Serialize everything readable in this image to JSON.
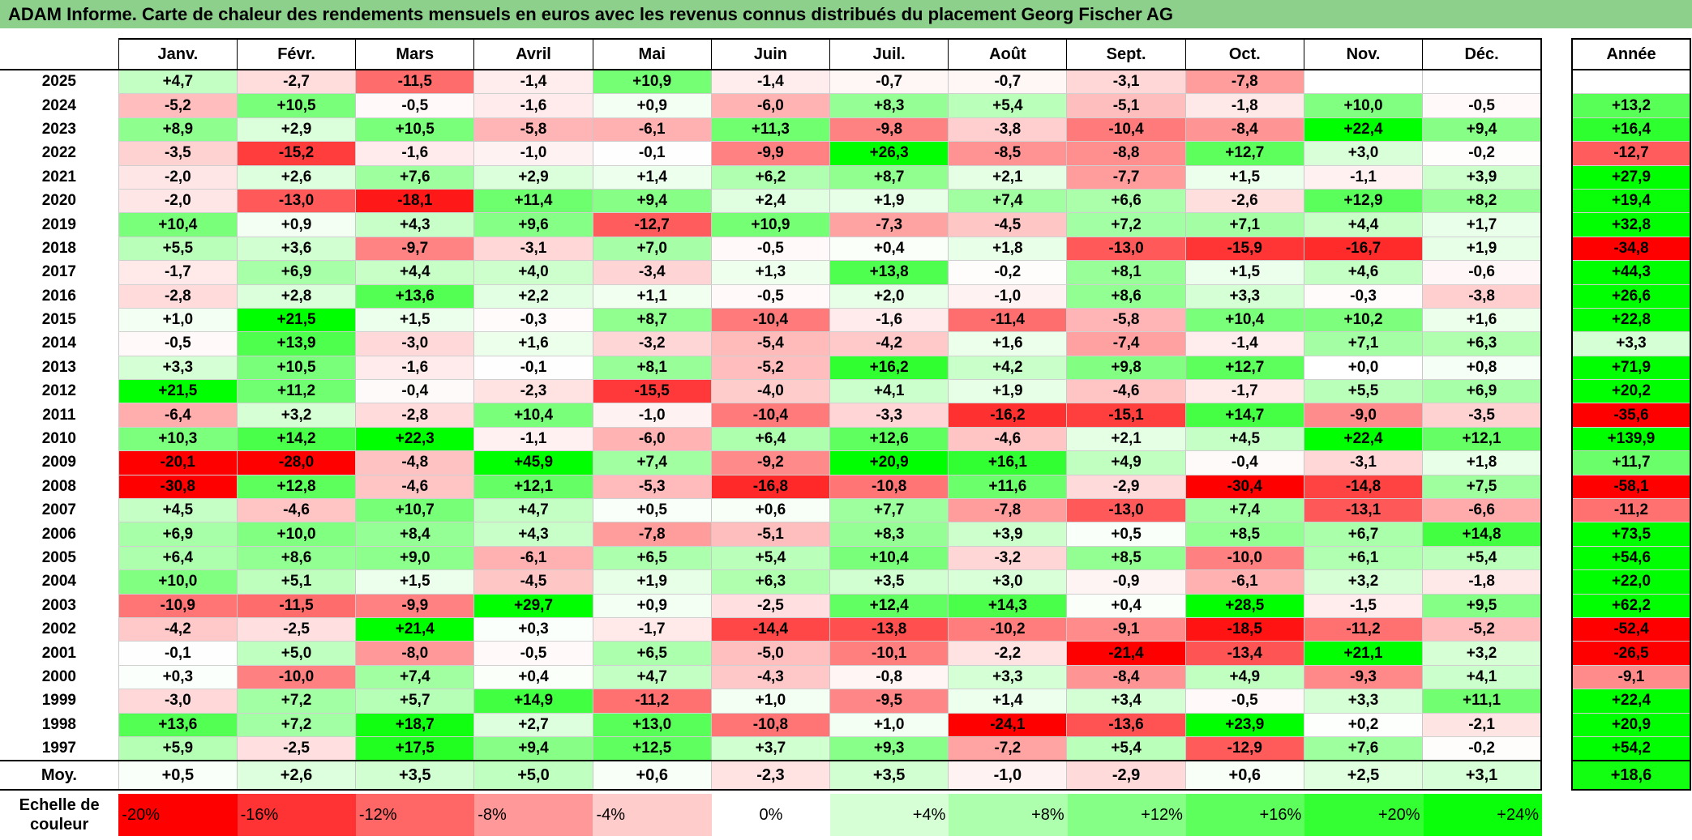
{
  "title": "ADAM Informe. Carte de chaleur des rendements mensuels en euros avec les revenus connus distribués du placement Georg Fischer AG",
  "chart_data": {
    "type": "heatmap",
    "title": "ADAM Informe. Carte de chaleur des rendements mensuels en euros avec les revenus connus distribués du placement Georg Fischer AG",
    "months": [
      "Janv.",
      "Févr.",
      "Mars",
      "Avril",
      "Mai",
      "Juin",
      "Juil.",
      "Août",
      "Sept.",
      "Oct.",
      "Nov.",
      "Déc."
    ],
    "year_header": "Année",
    "rows": [
      {
        "year": "2025",
        "values": [
          "+4,7",
          "-2,7",
          "-11,5",
          "-1,4",
          "+10,9",
          "-1,4",
          "-0,7",
          "-0,7",
          "-3,1",
          "-7,8",
          "",
          ""
        ],
        "total": ""
      },
      {
        "year": "2024",
        "values": [
          "-5,2",
          "+10,5",
          "-0,5",
          "-1,6",
          "+0,9",
          "-6,0",
          "+8,3",
          "+5,4",
          "-5,1",
          "-1,8",
          "+10,0",
          "-0,5"
        ],
        "total": "+13,2"
      },
      {
        "year": "2023",
        "values": [
          "+8,9",
          "+2,9",
          "+10,5",
          "-5,8",
          "-6,1",
          "+11,3",
          "-9,8",
          "-3,8",
          "-10,4",
          "-8,4",
          "+22,4",
          "+9,4"
        ],
        "total": "+16,4"
      },
      {
        "year": "2022",
        "values": [
          "-3,5",
          "-15,2",
          "-1,6",
          "-1,0",
          "-0,1",
          "-9,9",
          "+26,3",
          "-8,5",
          "-8,8",
          "+12,7",
          "+3,0",
          "-0,2"
        ],
        "total": "-12,7"
      },
      {
        "year": "2021",
        "values": [
          "-2,0",
          "+2,6",
          "+7,6",
          "+2,9",
          "+1,4",
          "+6,2",
          "+8,7",
          "+2,1",
          "-7,7",
          "+1,5",
          "-1,1",
          "+3,9"
        ],
        "total": "+27,9"
      },
      {
        "year": "2020",
        "values": [
          "-2,0",
          "-13,0",
          "-18,1",
          "+11,4",
          "+9,4",
          "+2,4",
          "+1,9",
          "+7,4",
          "+6,6",
          "-2,6",
          "+12,9",
          "+8,2"
        ],
        "total": "+19,4"
      },
      {
        "year": "2019",
        "values": [
          "+10,4",
          "+0,9",
          "+4,3",
          "+9,6",
          "-12,7",
          "+10,9",
          "-7,3",
          "-4,5",
          "+7,2",
          "+7,1",
          "+4,4",
          "+1,7"
        ],
        "total": "+32,8"
      },
      {
        "year": "2018",
        "values": [
          "+5,5",
          "+3,6",
          "-9,7",
          "-3,1",
          "+7,0",
          "-0,5",
          "+0,4",
          "+1,8",
          "-13,0",
          "-15,9",
          "-16,7",
          "+1,9"
        ],
        "total": "-34,8"
      },
      {
        "year": "2017",
        "values": [
          "-1,7",
          "+6,9",
          "+4,4",
          "+4,0",
          "-3,4",
          "+1,3",
          "+13,8",
          "-0,2",
          "+8,1",
          "+1,5",
          "+4,6",
          "-0,6"
        ],
        "total": "+44,3"
      },
      {
        "year": "2016",
        "values": [
          "-2,8",
          "+2,8",
          "+13,6",
          "+2,2",
          "+1,1",
          "-0,5",
          "+2,0",
          "-1,0",
          "+8,6",
          "+3,3",
          "-0,3",
          "-3,8"
        ],
        "total": "+26,6"
      },
      {
        "year": "2015",
        "values": [
          "+1,0",
          "+21,5",
          "+1,5",
          "-0,3",
          "+8,7",
          "-10,4",
          "-1,6",
          "-11,4",
          "-5,8",
          "+10,4",
          "+10,2",
          "+1,6"
        ],
        "total": "+22,8"
      },
      {
        "year": "2014",
        "values": [
          "-0,5",
          "+13,9",
          "-3,0",
          "+1,6",
          "-3,2",
          "-5,4",
          "-4,2",
          "+1,6",
          "-7,4",
          "-1,4",
          "+7,1",
          "+6,3"
        ],
        "total": "+3,3"
      },
      {
        "year": "2013",
        "values": [
          "+3,3",
          "+10,5",
          "-1,6",
          "-0,1",
          "+8,1",
          "-5,2",
          "+16,2",
          "+4,2",
          "+9,8",
          "+12,7",
          "+0,0",
          "+0,8"
        ],
        "total": "+71,9"
      },
      {
        "year": "2012",
        "values": [
          "+21,5",
          "+11,2",
          "-0,4",
          "-2,3",
          "-15,5",
          "-4,0",
          "+4,1",
          "+1,9",
          "-4,6",
          "-1,7",
          "+5,5",
          "+6,9"
        ],
        "total": "+20,2"
      },
      {
        "year": "2011",
        "values": [
          "-6,4",
          "+3,2",
          "-2,8",
          "+10,4",
          "-1,0",
          "-10,4",
          "-3,3",
          "-16,2",
          "-15,1",
          "+14,7",
          "-9,0",
          "-3,5"
        ],
        "total": "-35,6"
      },
      {
        "year": "2010",
        "values": [
          "+10,3",
          "+14,2",
          "+22,3",
          "-1,1",
          "-6,0",
          "+6,4",
          "+12,6",
          "-4,6",
          "+2,1",
          "+4,5",
          "+22,4",
          "+12,1"
        ],
        "total": "+139,9"
      },
      {
        "year": "2009",
        "values": [
          "-20,1",
          "-28,0",
          "-4,8",
          "+45,9",
          "+7,4",
          "-9,2",
          "+20,9",
          "+16,1",
          "+4,9",
          "-0,4",
          "-3,1",
          "+1,8"
        ],
        "total": "+11,7"
      },
      {
        "year": "2008",
        "values": [
          "-30,8",
          "+12,8",
          "-4,6",
          "+12,1",
          "-5,3",
          "-16,8",
          "-10,8",
          "+11,6",
          "-2,9",
          "-30,4",
          "-14,8",
          "+7,5"
        ],
        "total": "-58,1"
      },
      {
        "year": "2007",
        "values": [
          "+4,5",
          "-4,6",
          "+10,7",
          "+4,7",
          "+0,5",
          "+0,6",
          "+7,7",
          "-7,8",
          "-13,0",
          "+7,4",
          "-13,1",
          "-6,6"
        ],
        "total": "-11,2"
      },
      {
        "year": "2006",
        "values": [
          "+6,9",
          "+10,0",
          "+8,4",
          "+4,3",
          "-7,8",
          "-5,1",
          "+8,3",
          "+3,9",
          "+0,5",
          "+8,5",
          "+6,7",
          "+14,8"
        ],
        "total": "+73,5"
      },
      {
        "year": "2005",
        "values": [
          "+6,4",
          "+8,6",
          "+9,0",
          "-6,1",
          "+6,5",
          "+5,4",
          "+10,4",
          "-3,2",
          "+8,5",
          "-10,0",
          "+6,1",
          "+5,4"
        ],
        "total": "+54,6"
      },
      {
        "year": "2004",
        "values": [
          "+10,0",
          "+5,1",
          "+1,5",
          "-4,5",
          "+1,9",
          "+6,3",
          "+3,5",
          "+3,0",
          "-0,9",
          "-6,1",
          "+3,2",
          "-1,8"
        ],
        "total": "+22,0"
      },
      {
        "year": "2003",
        "values": [
          "-10,9",
          "-11,5",
          "-9,9",
          "+29,7",
          "+0,9",
          "-2,5",
          "+12,4",
          "+14,3",
          "+0,4",
          "+28,5",
          "-1,5",
          "+9,5"
        ],
        "total": "+62,2"
      },
      {
        "year": "2002",
        "values": [
          "-4,2",
          "-2,5",
          "+21,4",
          "+0,3",
          "-1,7",
          "-14,4",
          "-13,8",
          "-10,2",
          "-9,1",
          "-18,5",
          "-11,2",
          "-5,2"
        ],
        "total": "-52,4"
      },
      {
        "year": "2001",
        "values": [
          "-0,1",
          "+5,0",
          "-8,0",
          "-0,5",
          "+6,5",
          "-5,0",
          "-10,1",
          "-2,2",
          "-21,4",
          "-13,4",
          "+21,1",
          "+3,2"
        ],
        "total": "-26,5"
      },
      {
        "year": "2000",
        "values": [
          "+0,3",
          "-10,0",
          "+7,4",
          "+0,4",
          "+4,7",
          "-4,3",
          "-0,8",
          "+3,3",
          "-8,4",
          "+4,9",
          "-9,3",
          "+4,1"
        ],
        "total": "-9,1"
      },
      {
        "year": "1999",
        "values": [
          "-3,0",
          "+7,2",
          "+5,7",
          "+14,9",
          "-11,2",
          "+1,0",
          "-9,5",
          "+1,4",
          "+3,4",
          "-0,5",
          "+3,3",
          "+11,1"
        ],
        "total": "+22,4"
      },
      {
        "year": "1998",
        "values": [
          "+13,6",
          "+7,2",
          "+18,7",
          "+2,7",
          "+13,0",
          "-10,8",
          "+1,0",
          "-24,1",
          "-13,6",
          "+23,9",
          "+0,2",
          "-2,1"
        ],
        "total": "+20,9"
      },
      {
        "year": "1997",
        "values": [
          "+5,9",
          "-2,5",
          "+17,5",
          "+9,4",
          "+12,5",
          "+3,7",
          "+9,3",
          "-7,2",
          "+5,4",
          "-12,9",
          "+7,6",
          "-0,2"
        ],
        "total": "+54,2"
      }
    ],
    "average": {
      "label": "Moy.",
      "values": [
        "+0,5",
        "+2,6",
        "+3,5",
        "+5,0",
        "+0,6",
        "-2,3",
        "+3,5",
        "-1,0",
        "-2,9",
        "+0,6",
        "+2,5",
        "+3,1"
      ],
      "total": "+18,6"
    },
    "scale": {
      "label": "Echelle de couleur",
      "steps": [
        {
          "label": "-20%",
          "value": -20,
          "color": "#ff0000"
        },
        {
          "label": "-16%",
          "value": -16,
          "color": "#ff3333"
        },
        {
          "label": "-12%",
          "value": -12,
          "color": "#ff6666"
        },
        {
          "label": "-8%",
          "value": -8,
          "color": "#ff9999"
        },
        {
          "label": "-4%",
          "value": -4,
          "color": "#ffcccc"
        },
        {
          "label": "0%",
          "value": 0,
          "color": "#ffffff"
        },
        {
          "label": "+4%",
          "value": 4,
          "color": "#d6ffd6"
        },
        {
          "label": "+8%",
          "value": 8,
          "color": "#adffad"
        },
        {
          "label": "+12%",
          "value": 12,
          "color": "#85ff85"
        },
        {
          "label": "+16%",
          "value": 16,
          "color": "#5cff5c"
        },
        {
          "label": "+20%",
          "value": 20,
          "color": "#33ff33"
        },
        {
          "label": "+24%",
          "value": 24,
          "color": "#0aff0a"
        }
      ]
    },
    "colors": {
      "negative_max": "#ff0000",
      "neutral": "#ffffff",
      "positive_max": "#00ff00",
      "title_bar": "#8cd08c"
    }
  }
}
